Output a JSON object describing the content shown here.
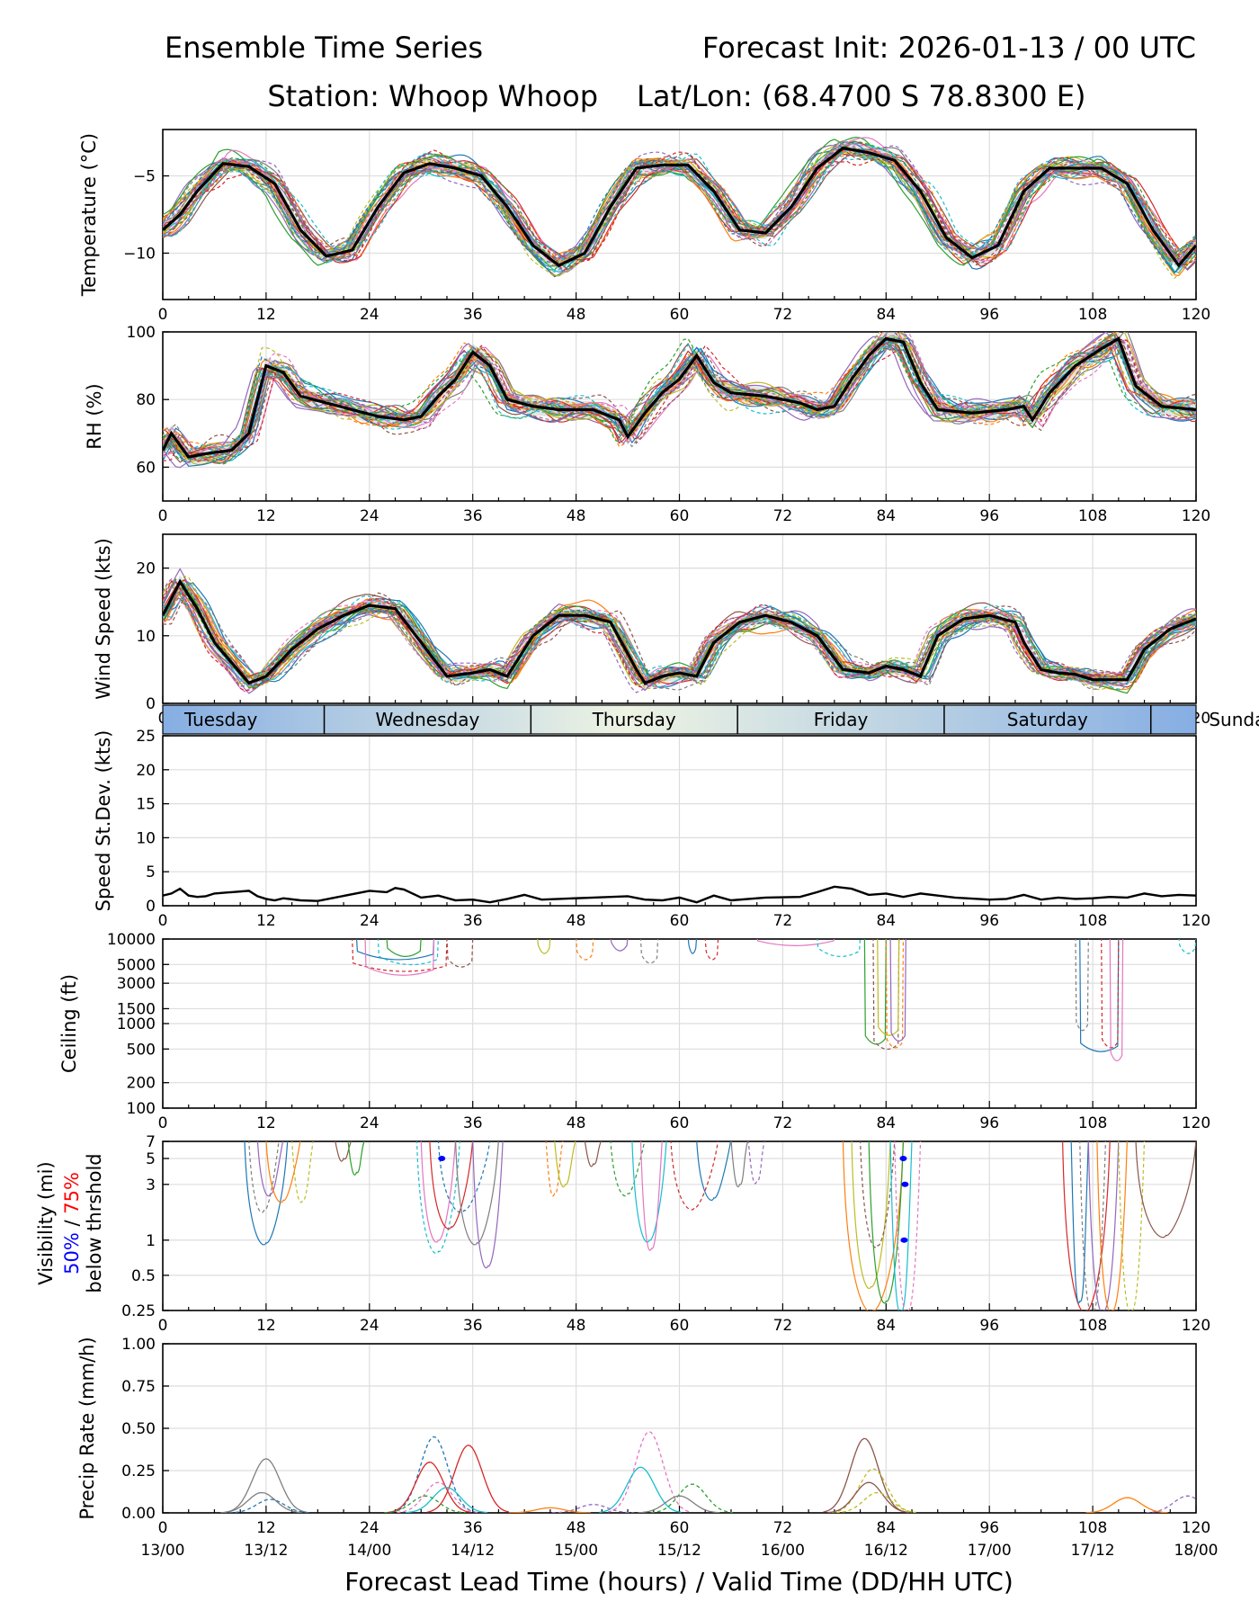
{
  "title": {
    "left": "Ensemble Time Series",
    "right": "Forecast Init: 2026-01-13 / 00 UTC",
    "station": "Station: Whoop Whoop",
    "latlon": "Lat/Lon: (68.4700 S 78.8300 E)"
  },
  "xaxis": {
    "label": "Forecast Lead Time (hours) / Valid Time (DD/HH UTC)",
    "ticks": [
      0,
      12,
      24,
      36,
      48,
      60,
      72,
      84,
      96,
      108,
      120
    ],
    "tick_labels": [
      "0",
      "12",
      "24",
      "36",
      "48",
      "60",
      "72",
      "84",
      "96",
      "108",
      "120"
    ],
    "valid_labels": [
      "13/00",
      "13/12",
      "14/00",
      "14/12",
      "15/00",
      "15/12",
      "16/00",
      "16/12",
      "17/00",
      "17/12",
      "18/00"
    ]
  },
  "day_band": {
    "labels": [
      "Tuesday",
      "Wednesday",
      "Thursday",
      "Friday",
      "Saturday",
      "Sunday"
    ],
    "separators_hours": [
      18.75,
      42.75,
      66.75,
      90.75,
      114.75
    ]
  },
  "visibility_label": {
    "line1": "Visibility (mi)",
    "pct50": "50%",
    "slash": " / ",
    "pct75": "75%",
    "line3": "below thrshold"
  },
  "colors": {
    "mean": "#000000",
    "pct50": "#0000ff",
    "pct75": "#ff0000",
    "members": [
      "#1f77b4",
      "#ff7f0e",
      "#2ca02c",
      "#d62728",
      "#9467bd",
      "#8c564b",
      "#e377c2",
      "#7f7f7f",
      "#bcbd22",
      "#17becf"
    ]
  },
  "chart_data": [
    {
      "id": "temperature",
      "type": "line",
      "ylabel": "Temperature (°C)",
      "ylim": [
        -13,
        -2
      ],
      "yticks": [
        -10,
        -5
      ],
      "ytick_labels": [
        "−10",
        "−5"
      ],
      "mean_x": [
        0,
        2,
        4,
        7,
        10,
        13,
        16,
        19,
        22,
        25,
        28,
        31,
        34,
        37,
        40,
        43,
        46,
        49,
        52,
        55,
        58,
        61,
        64,
        67,
        70,
        73,
        76,
        79,
        82,
        85,
        88,
        91,
        94,
        97,
        100,
        103,
        106,
        109,
        112,
        115,
        118,
        120
      ],
      "mean_y": [
        -8.5,
        -7.5,
        -6.0,
        -4.2,
        -4.4,
        -5.5,
        -8.5,
        -10.2,
        -9.8,
        -7.0,
        -4.8,
        -4.2,
        -4.5,
        -5.0,
        -7.0,
        -9.5,
        -10.8,
        -10.0,
        -7.0,
        -4.5,
        -4.3,
        -4.3,
        -6.0,
        -8.5,
        -8.7,
        -7.0,
        -4.5,
        -3.2,
        -3.5,
        -4.0,
        -6.0,
        -9.0,
        -10.3,
        -9.5,
        -6.0,
        -4.5,
        -4.5,
        -4.5,
        -5.5,
        -8.5,
        -10.8,
        -9.5
      ]
    },
    {
      "id": "rh",
      "type": "line",
      "ylabel": "RH (%)",
      "ylim": [
        50,
        100
      ],
      "yticks": [
        60,
        80,
        100
      ],
      "ytick_labels": [
        "60",
        "80",
        "100"
      ],
      "mean_x": [
        0,
        1,
        3,
        5,
        8,
        10,
        12,
        14,
        16,
        19,
        22,
        25,
        28,
        30,
        32,
        34,
        36,
        38,
        40,
        43,
        46,
        50,
        53,
        54,
        56,
        58,
        60,
        62,
        64,
        66,
        70,
        74,
        76,
        78,
        80,
        82,
        84,
        86,
        88,
        90,
        94,
        98,
        100,
        101,
        103,
        106,
        109,
        111,
        113,
        116,
        120
      ],
      "mean_y": [
        65,
        70,
        63,
        64,
        65,
        70,
        90,
        88,
        81,
        79,
        77,
        75,
        74,
        75,
        81,
        86,
        94,
        90,
        80,
        78,
        77,
        77,
        74,
        69,
        76,
        82,
        86,
        93,
        85,
        82,
        81,
        79,
        77,
        78,
        86,
        93,
        98,
        97,
        85,
        77,
        76,
        77,
        78,
        74,
        82,
        90,
        95,
        98,
        84,
        78,
        77
      ]
    },
    {
      "id": "wind_speed",
      "type": "line",
      "ylabel": "Wind Speed (kts)",
      "ylim": [
        0,
        25
      ],
      "yticks": [
        0,
        10,
        20
      ],
      "ytick_labels": [
        "0",
        "10",
        "20"
      ],
      "mean_x": [
        0,
        2,
        4,
        6,
        8,
        10,
        12,
        15,
        18,
        21,
        24,
        27,
        30,
        33,
        36,
        38,
        40,
        43,
        46,
        49,
        52,
        55,
        56,
        58,
        60,
        62,
        64,
        67,
        70,
        73,
        76,
        79,
        82,
        84,
        86,
        88,
        90,
        93,
        96,
        99,
        100,
        102,
        104,
        106,
        108,
        110,
        112,
        114,
        117,
        120
      ],
      "mean_y": [
        13,
        18,
        14,
        9,
        6,
        3,
        4,
        8,
        11,
        13,
        14.5,
        14,
        9,
        4,
        4.5,
        5,
        4,
        10,
        13,
        13,
        12,
        5,
        3,
        4,
        4.5,
        4,
        9,
        12,
        13,
        12,
        10,
        5,
        4.5,
        5.5,
        5,
        4,
        10,
        12.5,
        13,
        12,
        9,
        5,
        4.5,
        4.3,
        3.5,
        3.5,
        3.5,
        8,
        11,
        12.5
      ]
    },
    {
      "id": "speed_stdev",
      "type": "line",
      "ylabel": "Speed St.Dev. (kts)",
      "ylim": [
        0,
        25
      ],
      "yticks": [
        0,
        5,
        10,
        15,
        20,
        25
      ],
      "ytick_labels": [
        "0",
        "5",
        "10",
        "15",
        "20",
        "25"
      ],
      "x": [
        0,
        1,
        2,
        3,
        4,
        5,
        6,
        8,
        10,
        11,
        12,
        13,
        14,
        16,
        18,
        20,
        24,
        26,
        27,
        28,
        30,
        32,
        34,
        36,
        38,
        40,
        42,
        44,
        46,
        50,
        54,
        56,
        58,
        60,
        62,
        64,
        66,
        70,
        74,
        76,
        78,
        80,
        82,
        84,
        86,
        88,
        90,
        92,
        96,
        98,
        100,
        102,
        104,
        106,
        108,
        110,
        112,
        114,
        116,
        118,
        120
      ],
      "y": [
        1.5,
        1.8,
        2.5,
        1.5,
        1.3,
        1.4,
        1.8,
        2.0,
        2.2,
        1.4,
        1.0,
        0.8,
        1.1,
        0.8,
        0.7,
        1.2,
        2.2,
        2.0,
        2.6,
        2.4,
        1.2,
        1.5,
        0.8,
        0.9,
        0.5,
        1.0,
        1.6,
        0.9,
        1.0,
        1.2,
        1.4,
        0.9,
        0.8,
        1.2,
        0.5,
        1.5,
        0.8,
        1.2,
        1.3,
        2.0,
        2.8,
        2.5,
        1.6,
        1.8,
        1.3,
        1.8,
        1.5,
        1.2,
        0.9,
        1.0,
        1.6,
        0.9,
        1.2,
        1.0,
        1.1,
        1.3,
        1.2,
        1.8,
        1.4,
        1.6,
        1.5
      ]
    },
    {
      "id": "ceiling",
      "type": "line",
      "ylabel": "Ceiling (ft)",
      "scale": "log",
      "ylim": [
        100,
        10000
      ],
      "yticks": [
        100,
        200,
        500,
        1000,
        1500,
        3000,
        5000,
        10000
      ],
      "ytick_labels": [
        "100",
        "200",
        "500",
        "1000",
        "1500",
        "3000",
        "5000",
        "10000"
      ]
    },
    {
      "id": "visibility",
      "type": "line",
      "scale": "log",
      "ylim": [
        0.25,
        7
      ],
      "yticks": [
        0.25,
        0.5,
        1,
        3,
        5,
        7
      ],
      "ytick_labels": [
        "0.25",
        "0.5",
        "1",
        "3",
        "5",
        "7"
      ],
      "pct50_points": [
        [
          32.4,
          5
        ],
        [
          86.0,
          5
        ],
        [
          86.2,
          3
        ],
        [
          86.1,
          1
        ]
      ],
      "pct75_points": []
    },
    {
      "id": "precip_rate",
      "type": "line",
      "ylabel": "Precip Rate (mm/h)",
      "ylim": [
        0,
        1
      ],
      "yticks": [
        0,
        0.25,
        0.5,
        0.75,
        1.0
      ],
      "ytick_labels": [
        "0.00",
        "0.25",
        "0.50",
        "0.75",
        "1.00"
      ],
      "peaks": [
        [
          12,
          0.32
        ],
        [
          31.5,
          0.45
        ],
        [
          35.5,
          0.4
        ],
        [
          56.5,
          0.48
        ],
        [
          55.5,
          0.27
        ],
        [
          61.5,
          0.17
        ],
        [
          81.5,
          0.44
        ],
        [
          82.5,
          0.26
        ],
        [
          112,
          0.09
        ],
        [
          119,
          0.1
        ]
      ]
    }
  ]
}
